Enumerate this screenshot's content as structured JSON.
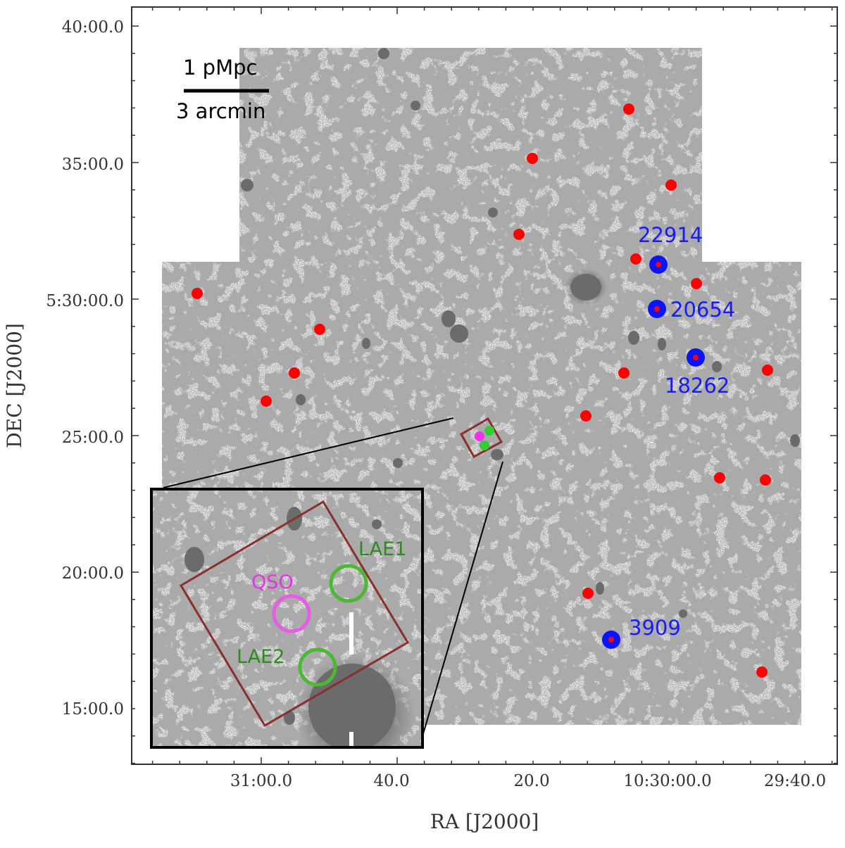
{
  "figure": {
    "x_axis_title": "RA [J2000]",
    "y_axis_title": "DEC [J2000]",
    "x_tick_labels": [
      "31:00.0",
      "40.0",
      "20.0",
      "10:30:00.0",
      "29:40.0"
    ],
    "y_tick_labels": [
      "40:00.0",
      "35:00.0",
      "5:30:00.0",
      "25:00.0",
      "20:00.0",
      "15:00.0"
    ],
    "scale_bar": {
      "top_label": "1 pMpc",
      "bottom_label": "3 arcmin"
    },
    "labeled_sources": [
      {
        "id": "22914"
      },
      {
        "id": "20654"
      },
      {
        "id": "18262"
      },
      {
        "id": "3909"
      }
    ],
    "inset": {
      "qso_label": "QSO",
      "lae1_label": "LAE1",
      "lae2_label": "LAE2"
    },
    "colors": {
      "red_source": "#ff0000",
      "blue_source": "#0a14ff",
      "qso": "#e65ce6",
      "lae": "#4db833",
      "field_box": "#8b2e2e",
      "source_label": "#1a1aff",
      "inset_lae_label": "#2e8b22",
      "inset_qso_label": "#e633e6"
    }
  }
}
